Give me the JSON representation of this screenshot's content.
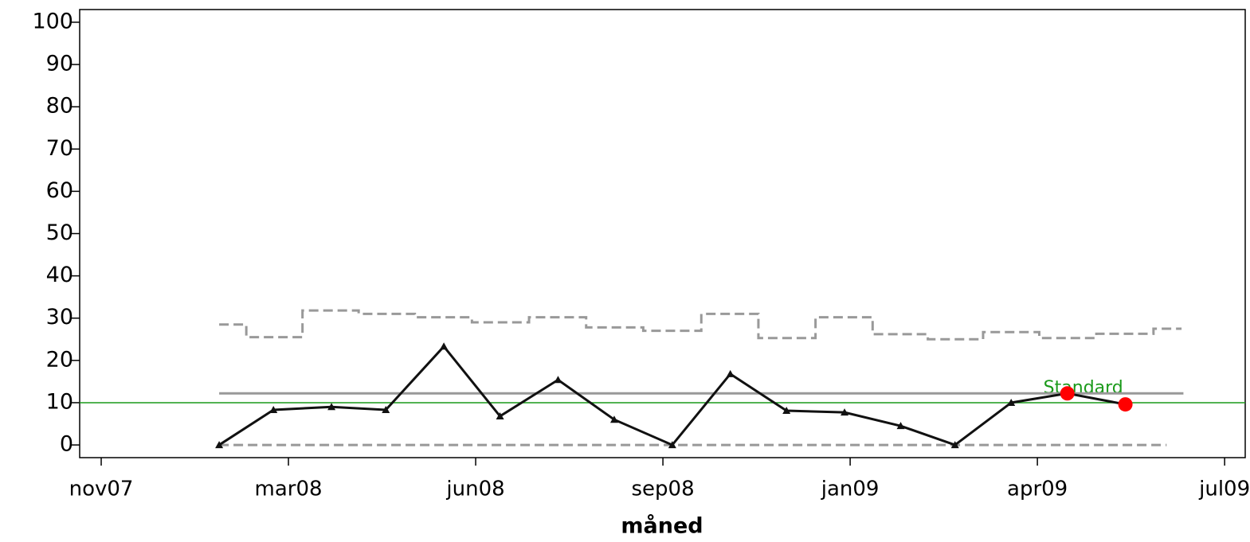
{
  "chart_data": {
    "type": "line",
    "x_label": "måned",
    "xlim": [
      -0.115,
      6.11
    ],
    "ylim": [
      -3,
      103
    ],
    "xticks": [
      {
        "value": 0,
        "label": "nov07"
      },
      {
        "value": 1,
        "label": "mar08"
      },
      {
        "value": 2,
        "label": "jun08"
      },
      {
        "value": 3,
        "label": "sep08"
      },
      {
        "value": 4,
        "label": "jan09"
      },
      {
        "value": 5,
        "label": "apr09"
      },
      {
        "value": 6,
        "label": "jul09"
      }
    ],
    "yticks": [
      0,
      10,
      20,
      30,
      40,
      50,
      60,
      70,
      80,
      90,
      100
    ],
    "series": [
      {
        "style": "step-dashed",
        "color": "#999999",
        "x": [
          0.63,
          0.92,
          1.23,
          1.52,
          1.83,
          2.13,
          2.44,
          2.74,
          3.05,
          3.36,
          3.66,
          3.97,
          4.27,
          4.56,
          4.86,
          5.16,
          5.47,
          5.77
        ],
        "values": [
          28.5,
          25.5,
          31.8,
          31,
          30.2,
          29,
          30.2,
          27.8,
          27,
          31,
          25.3,
          30.2,
          26.2,
          25,
          26.7,
          25.3,
          26.3,
          27.5
        ]
      },
      {
        "style": "dashed",
        "color": "#999999",
        "x": [
          0.63,
          5.69
        ],
        "values": [
          0,
          0
        ]
      },
      {
        "style": "solid",
        "color": "#999999",
        "x": [
          0.63,
          5.78
        ],
        "values": [
          12.2,
          12.2
        ]
      },
      {
        "style": "line-markers",
        "color": "#111111",
        "x": [
          0.63,
          0.92,
          1.23,
          1.52,
          1.83,
          2.13,
          2.44,
          2.74,
          3.05,
          3.36,
          3.66,
          3.97,
          4.27,
          4.56,
          4.86,
          5.16,
          5.47
        ],
        "values": [
          0,
          8.3,
          9,
          8.3,
          23.3,
          6.8,
          15.4,
          6,
          0,
          16.8,
          8.1,
          7.7,
          4.5,
          0,
          10,
          12.2,
          9.6
        ]
      },
      {
        "style": "points",
        "color": "#ff0000",
        "x": [
          5.16,
          5.47
        ],
        "values": [
          12.2,
          9.6
        ]
      }
    ],
    "reference_line": {
      "value": 10,
      "label": "Standard",
      "color": "#1a9a1a"
    }
  }
}
